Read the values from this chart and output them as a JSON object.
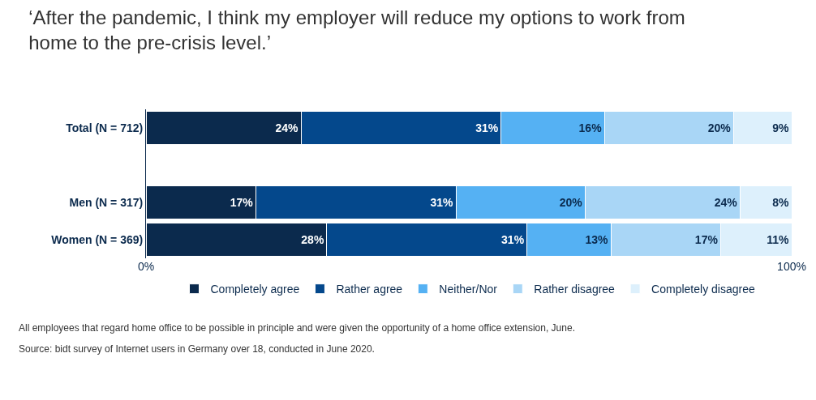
{
  "chart_data": {
    "type": "bar",
    "orientation": "horizontal",
    "stacked": true,
    "title": "‘After the pandemic, I think my employer will reduce my options to work from home to the pre-crisis level.’",
    "categories": [
      "Total (N = 712)",
      null,
      "Men (N = 317)",
      "Women (N = 369)"
    ],
    "series": [
      {
        "name": "Completely agree",
        "color": "#0b2a4d",
        "values": [
          24,
          null,
          17,
          28
        ],
        "value_labels": [
          "24%",
          null,
          "17%",
          "28%"
        ]
      },
      {
        "name": "Rather agree",
        "color": "#04488c",
        "values": [
          31,
          null,
          31,
          31
        ],
        "value_labels": [
          "31%",
          null,
          "31%",
          "31%"
        ]
      },
      {
        "name": "Neither/Nor",
        "color": "#55b1f3",
        "values": [
          16,
          null,
          20,
          13
        ],
        "value_labels": [
          "16%",
          null,
          "20%",
          "13%"
        ]
      },
      {
        "name": "Rather disagree",
        "color": "#a9d6f6",
        "values": [
          20,
          null,
          24,
          17
        ],
        "value_labels": [
          "20%",
          null,
          "24%",
          "17%"
        ]
      },
      {
        "name": "Completely disagree",
        "color": "#ddf0fc",
        "values": [
          9,
          null,
          8,
          11
        ],
        "value_labels": [
          "9%",
          null,
          "8%",
          "11%"
        ]
      }
    ],
    "xlim": [
      0,
      100
    ],
    "xticks": [
      {
        "value": 0,
        "label": "0%"
      },
      {
        "value": 100,
        "label": "100%"
      }
    ],
    "legend": "bottom",
    "annotations": [
      "All employees that regard home office to be possible in principle and were given the opportunity of a home office extension, June.",
      "Source: bidt survey of Internet users in Germany over 18, conducted in June 2020."
    ]
  }
}
